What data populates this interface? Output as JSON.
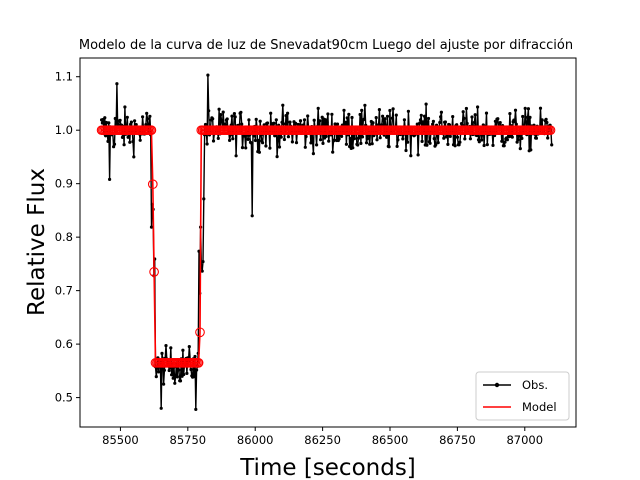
{
  "chart_data": {
    "type": "line",
    "title": "Modelo de la curva de luz de Snevadat90cm Luego del ajuste por difracción",
    "xlabel": "Time [seconds]",
    "ylabel": "Relative Flux",
    "xlim": [
      85350,
      87190
    ],
    "ylim": [
      0.445,
      1.135
    ],
    "xticks": [
      85500,
      85750,
      86000,
      86250,
      86500,
      86750,
      87000
    ],
    "yticks": [
      0.5,
      0.6,
      0.7,
      0.8,
      0.9,
      1.0,
      1.1
    ],
    "xtick_labels": [
      "85500",
      "85750",
      "86000",
      "86250",
      "86500",
      "86750",
      "87000"
    ],
    "ytick_labels": [
      "0.5",
      "0.6",
      "0.7",
      "0.8",
      "0.9",
      "1.0",
      "1.1"
    ],
    "grid": false,
    "legend_position": "bottom-right",
    "series": [
      {
        "name": "Obs.",
        "color": "#000000",
        "style": "line-with-dot-markers",
        "x_range": [
          85430,
          87100
        ],
        "n_points": 560,
        "segments": [
          {
            "x_start": 85430,
            "x_end": 85615,
            "mean_flux": 1.0,
            "scatter": 0.035
          },
          {
            "x_start": 85615,
            "x_end": 85630,
            "mean_flux": 0.8,
            "scatter": 0.1
          },
          {
            "x_start": 85630,
            "x_end": 85790,
            "mean_flux": 0.56,
            "scatter": 0.03
          },
          {
            "x_start": 85790,
            "x_end": 85810,
            "mean_flux": 0.8,
            "scatter": 0.1
          },
          {
            "x_start": 85810,
            "x_end": 87100,
            "mean_flux": 1.0,
            "scatter": 0.035
          }
        ],
        "notable_points": [
          {
            "x": 85487,
            "y": 1.087
          },
          {
            "x": 85825,
            "y": 1.103
          },
          {
            "x": 85990,
            "y": 0.84
          },
          {
            "x": 85780,
            "y": 0.478
          },
          {
            "x": 85650,
            "y": 0.48
          },
          {
            "x": 85460,
            "y": 0.908
          }
        ]
      },
      {
        "name": "Model",
        "color": "#ff0000",
        "style": "line-with-open-circle-markers",
        "step": 5.1,
        "x_range": [
          85430,
          87100
        ],
        "baseline_flux": 1.0,
        "occultation_flux": 0.565,
        "ingress": {
          "x": [
            85615,
            85620,
            85625,
            85630
          ],
          "y": [
            1.0,
            0.899,
            0.735,
            0.565
          ]
        },
        "egress": {
          "x": [
            85790,
            85795,
            85800
          ],
          "y": [
            0.565,
            0.622,
            1.0
          ]
        }
      }
    ]
  }
}
